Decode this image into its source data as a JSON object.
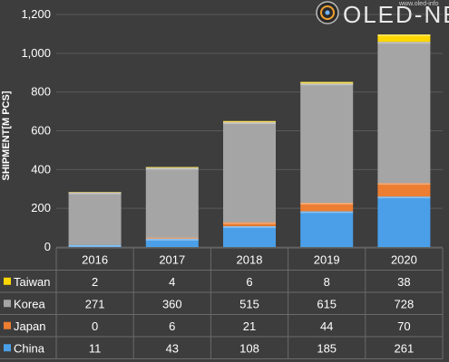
{
  "logo": {
    "text": "OLED-NET",
    "watermark": "www.oled-info"
  },
  "chart_data": {
    "type": "bar",
    "stacked": true,
    "ylabel": "SHIPMENT[M PCS]",
    "ylim": [
      0,
      1200
    ],
    "yticks": [
      "0",
      "200",
      "400",
      "600",
      "800",
      "1,000",
      "1,200"
    ],
    "grid": true,
    "categories": [
      "2016",
      "2017",
      "2018",
      "2019",
      "2020"
    ],
    "series": [
      {
        "name": "China",
        "values": [
          11,
          43,
          108,
          185,
          261
        ],
        "color": "#4a9fe8"
      },
      {
        "name": "Japan",
        "values": [
          0,
          6,
          21,
          44,
          70
        ],
        "color": "#ed7d31"
      },
      {
        "name": "Korea",
        "values": [
          271,
          360,
          515,
          615,
          728
        ],
        "color": "#a5a5a5"
      },
      {
        "name": "Taiwan",
        "values": [
          2,
          4,
          6,
          8,
          38
        ],
        "color": "#ffd700"
      }
    ],
    "table_rows_order": [
      "Taiwan",
      "Korea",
      "Japan",
      "China"
    ],
    "legend_placement": "table-left"
  }
}
